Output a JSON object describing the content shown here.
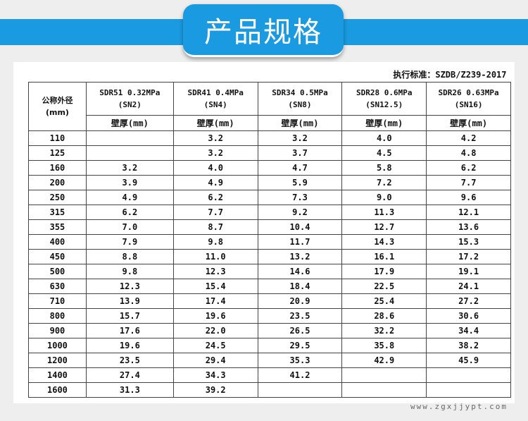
{
  "title": "产品规格",
  "standard": "执行标准：SZDB/Z239-2017",
  "diameter_header_line1": "公称外径",
  "diameter_header_line2": "(mm)",
  "sdr_headers": [
    {
      "line1": "SDR51  0.32MPa",
      "line2": "(SN2)"
    },
    {
      "line1": "SDR41  0.4MPa",
      "line2": "(SN4)"
    },
    {
      "line1": "SDR34 0.5MPa",
      "line2": "(SN8)"
    },
    {
      "line1": "SDR28  0.6MPa",
      "line2": "(SN12.5)"
    },
    {
      "line1": "SDR26  0.63MPa",
      "line2": "(SN16)"
    }
  ],
  "wall_label": "壁厚(mm)",
  "rows": [
    [
      "110",
      "",
      "3.2",
      "3.2",
      "4.0",
      "4.2"
    ],
    [
      "125",
      "",
      "3.2",
      "3.7",
      "4.5",
      "4.8"
    ],
    [
      "160",
      "3.2",
      "4.0",
      "4.7",
      "5.8",
      "6.2"
    ],
    [
      "200",
      "3.9",
      "4.9",
      "5.9",
      "7.2",
      "7.7"
    ],
    [
      "250",
      "4.9",
      "6.2",
      "7.3",
      "9.0",
      "9.6"
    ],
    [
      "315",
      "6.2",
      "7.7",
      "9.2",
      "11.3",
      "12.1"
    ],
    [
      "355",
      "7.0",
      "8.7",
      "10.4",
      "12.7",
      "13.6"
    ],
    [
      "400",
      "7.9",
      "9.8",
      "11.7",
      "14.3",
      "15.3"
    ],
    [
      "450",
      "8.8",
      "11.0",
      "13.2",
      "16.1",
      "17.2"
    ],
    [
      "500",
      "9.8",
      "12.3",
      "14.6",
      "17.9",
      "19.1"
    ],
    [
      "630",
      "12.3",
      "15.4",
      "18.4",
      "22.5",
      "24.1"
    ],
    [
      "710",
      "13.9",
      "17.4",
      "20.9",
      "25.4",
      "27.2"
    ],
    [
      "800",
      "15.7",
      "19.6",
      "23.5",
      "28.6",
      "30.6"
    ],
    [
      "900",
      "17.6",
      "22.0",
      "26.5",
      "32.2",
      "34.4"
    ],
    [
      "1000",
      "19.6",
      "24.5",
      "29.5",
      "35.8",
      "38.2"
    ],
    [
      "1200",
      "23.5",
      "29.4",
      "35.3",
      "42.9",
      "45.9"
    ],
    [
      "1400",
      "27.4",
      "34.3",
      "41.2",
      "",
      ""
    ],
    [
      "1600",
      "31.3",
      "39.2",
      "",
      "",
      ""
    ]
  ],
  "watermark": "www.zgxjjypt.com"
}
